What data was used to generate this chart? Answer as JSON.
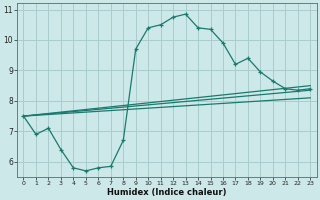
{
  "xlabel": "Humidex (Indice chaleur)",
  "bg_color": "#cce8e8",
  "grid_color": "#aacccc",
  "line_color": "#1a7a6e",
  "xlim": [
    -0.5,
    23.5
  ],
  "ylim": [
    5.5,
    11.2
  ],
  "xticks": [
    0,
    1,
    2,
    3,
    4,
    5,
    6,
    7,
    8,
    9,
    10,
    11,
    12,
    13,
    14,
    15,
    16,
    17,
    18,
    19,
    20,
    21,
    22,
    23
  ],
  "yticks": [
    6,
    7,
    8,
    9,
    10,
    11
  ],
  "line1_x": [
    0,
    1,
    2,
    3,
    4,
    5,
    6,
    7,
    8,
    9,
    10,
    11,
    12,
    13,
    14,
    15,
    16,
    17,
    18,
    19,
    20,
    21,
    22,
    23
  ],
  "line1_y": [
    7.5,
    6.9,
    7.1,
    6.4,
    5.8,
    5.7,
    5.8,
    5.85,
    6.7,
    9.7,
    10.4,
    10.5,
    10.75,
    10.85,
    10.4,
    10.35,
    9.9,
    9.2,
    9.4,
    8.95,
    8.65,
    8.4,
    8.35,
    8.4
  ],
  "line2_x": [
    0,
    23
  ],
  "line2_y": [
    7.5,
    8.5
  ],
  "line3_x": [
    0,
    23
  ],
  "line3_y": [
    7.5,
    8.35
  ],
  "line4_x": [
    0,
    23
  ],
  "line4_y": [
    7.5,
    8.1
  ]
}
